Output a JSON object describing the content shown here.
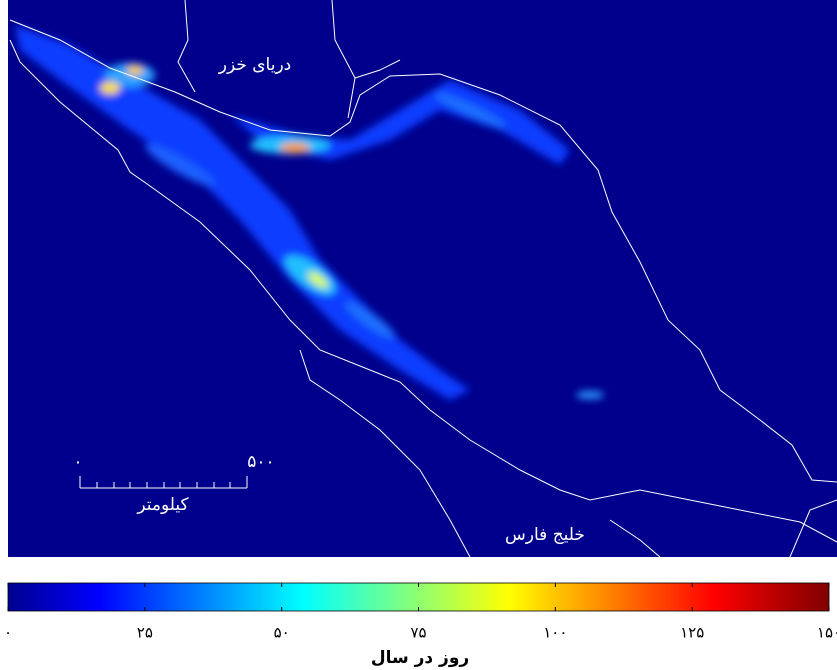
{
  "map": {
    "labels": {
      "caspian_sea": "دریای خزر",
      "persian_gulf": "خلیج فارس"
    },
    "scale_bar": {
      "unit": "کیلومتر",
      "ticks": [
        {
          "value": 0,
          "label": "۰"
        },
        {
          "value": 500,
          "label": "۵۰۰"
        }
      ]
    }
  },
  "colorbar": {
    "label": "روز در سال",
    "clim": [
      0,
      150
    ],
    "ticks": [
      {
        "value": 0,
        "label": "۰"
      },
      {
        "value": 25,
        "label": "۲۵"
      },
      {
        "value": 50,
        "label": "۵۰"
      },
      {
        "value": 75,
        "label": "۷۵"
      },
      {
        "value": 100,
        "label": "۱۰۰"
      },
      {
        "value": 125,
        "label": "۱۲۵"
      },
      {
        "value": 150,
        "label": "۱۵۰"
      }
    ]
  }
}
